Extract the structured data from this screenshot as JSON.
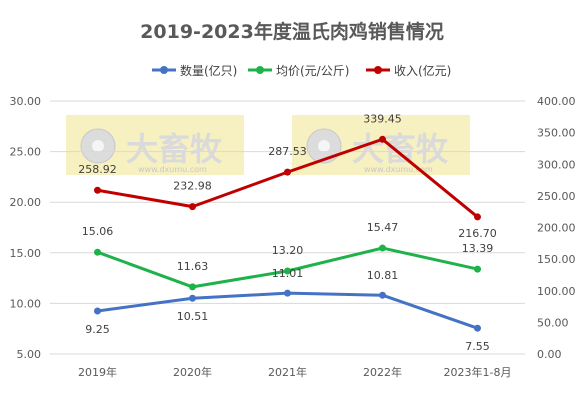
{
  "chart_data": {
    "type": "line",
    "title": "2019-2023年度温氏肉鸡销售情况",
    "categories": [
      "2019年",
      "2020年",
      "2021年",
      "2022年",
      "2023年1-8月"
    ],
    "series": [
      {
        "name": "数量(亿只)",
        "axis": "left",
        "color": "#4472C4",
        "values": [
          9.25,
          10.51,
          11.01,
          10.81,
          7.55
        ]
      },
      {
        "name": "均价(元/公斤)",
        "axis": "left",
        "color": "#1FB24A",
        "values": [
          15.06,
          11.63,
          13.2,
          15.47,
          13.39
        ]
      },
      {
        "name": "收入(亿元)",
        "axis": "right",
        "color": "#C00000",
        "values": [
          258.92,
          232.98,
          287.53,
          339.45,
          216.7
        ]
      }
    ],
    "y_left": {
      "min": 5,
      "max": 30,
      "step": 5,
      "ticks": [
        "5.00",
        "10.00",
        "15.00",
        "20.00",
        "25.00",
        "30.00"
      ]
    },
    "y_right": {
      "min": 0,
      "max": 400,
      "step": 50,
      "ticks": [
        "0.00",
        "50.00",
        "100.00",
        "150.00",
        "200.00",
        "250.00",
        "300.00",
        "350.00",
        "400.00"
      ]
    },
    "data_labels": {
      "quantity": [
        "9.25",
        "10.51",
        "11.01",
        "10.81",
        "7.55"
      ],
      "price": [
        "15.06",
        "11.63",
        "13.20",
        "15.47",
        "13.39"
      ],
      "revenue": [
        "258.92",
        "232.98",
        "287.53",
        "339.45",
        "216.70"
      ]
    },
    "legend_position": "top",
    "grid": true,
    "watermark": {
      "brand": "大畜牧",
      "url": "www.dxumu.com"
    }
  }
}
